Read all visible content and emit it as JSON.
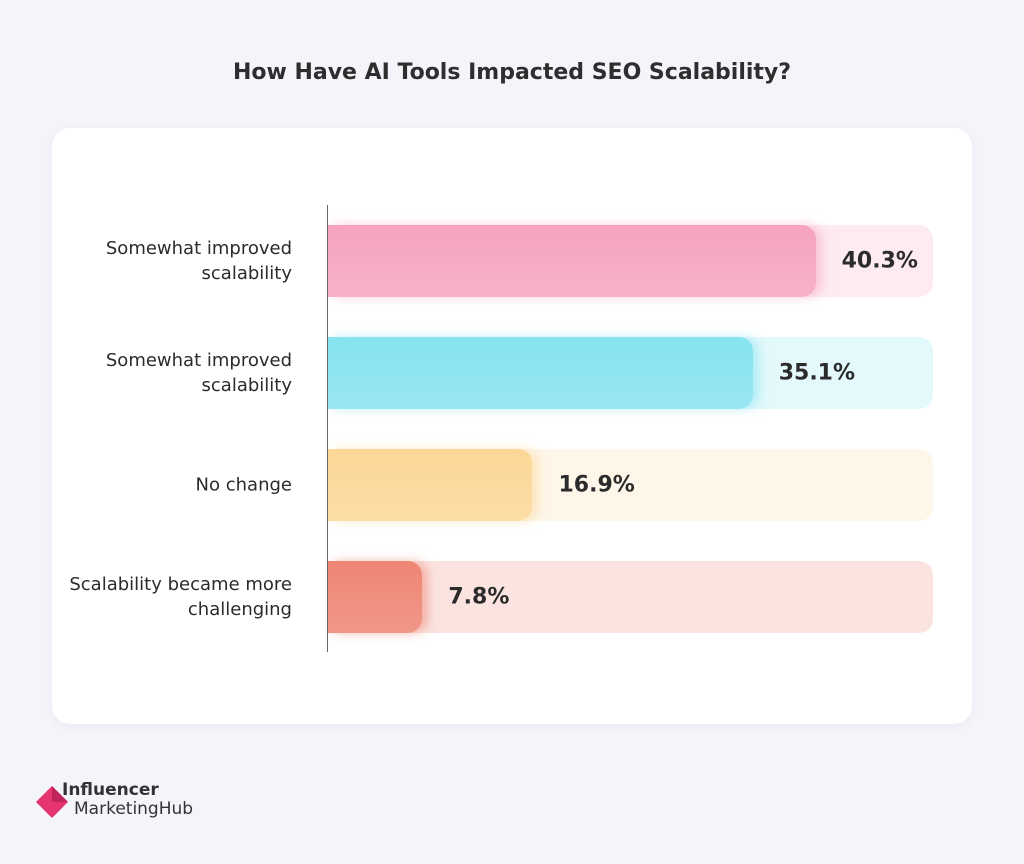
{
  "chart_data": {
    "type": "hbar",
    "title": "How Have AI Tools Impacted SEO Scalability?",
    "categories": [
      "Somewhat improved scalability",
      "Somewhat improved scalability",
      "No change",
      "Scalability became more challenging"
    ],
    "values": [
      40.3,
      35.1,
      16.9,
      7.8
    ],
    "value_labels": [
      "40.3%",
      "35.1%",
      "16.9%",
      "7.8%"
    ],
    "colors": [
      "#f6a3c0",
      "#86e3f0",
      "#fcd796",
      "#ee8573"
    ],
    "xlim": [
      0,
      50
    ]
  },
  "logo": {
    "line1": "Influencer",
    "line2": "MarketingHub"
  }
}
